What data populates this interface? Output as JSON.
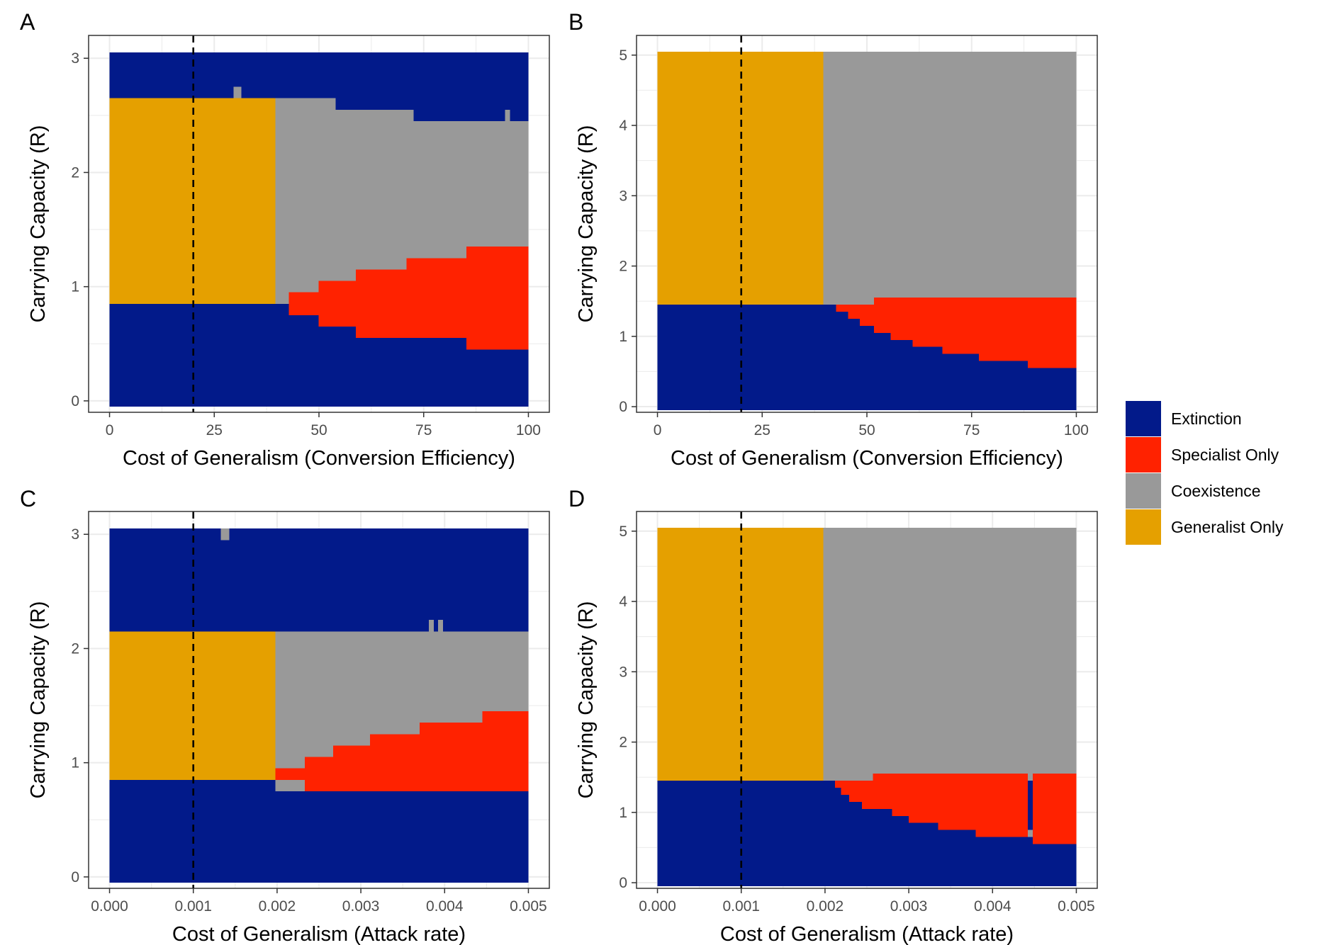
{
  "colors": {
    "Extinction": "#021A8A",
    "Specialist Only": "#FF2200",
    "Coexistence": "#999999",
    "Generalist Only": "#E5A000",
    "grid": "#EBEBEB",
    "border": "#333333",
    "ticks": "#4D4D4D"
  },
  "legend": {
    "items": [
      "Extinction",
      "Specialist Only",
      "Coexistence",
      "Generalist Only"
    ]
  },
  "chart_data": [
    {
      "panel": "A",
      "type": "heatmap",
      "xlabel": "Cost of Generalism (Conversion Efficiency)",
      "ylabel": "Carrying Capacity (R)",
      "xlim": [
        -5,
        105
      ],
      "ylim": [
        -0.1,
        3.2
      ],
      "xticks": [
        0,
        25,
        50,
        75,
        100
      ],
      "yticks": [
        0,
        1,
        2,
        3
      ],
      "xtick_labels": [
        "0",
        "25",
        "50",
        "75",
        "100"
      ],
      "ytick_labels": [
        "0",
        "1",
        "2",
        "3"
      ],
      "grid": true,
      "reference_line_x": 20,
      "regions": [
        {
          "state": "Extinction",
          "x0": 0,
          "x1": 100,
          "y0": -0.05,
          "y1": 3.05
        },
        {
          "state": "Generalist Only",
          "x0": 0,
          "x1": 39.6,
          "y0": 0.85,
          "y1": 2.65
        },
        {
          "state": "Coexistence",
          "x0": 39.6,
          "x1": 54,
          "y0": 0.85,
          "y1": 2.65
        },
        {
          "state": "Coexistence",
          "x0": 54,
          "x1": 72.6,
          "y0": 0.85,
          "y1": 2.55
        },
        {
          "state": "Coexistence",
          "x0": 72.6,
          "x1": 100,
          "y0": 0.85,
          "y1": 2.45
        },
        {
          "state": "Coexistence",
          "x0": 29.6,
          "x1": 31.5,
          "y0": 2.65,
          "y1": 2.75
        },
        {
          "state": "Coexistence",
          "x0": 94.4,
          "x1": 95.6,
          "y0": 2.45,
          "y1": 2.55
        },
        {
          "state": "Coexistence",
          "x0": 39.6,
          "x1": 100,
          "y0": 0.85,
          "y1": 1.35
        },
        {
          "state": "Specialist Only",
          "x0": 42.8,
          "x1": 49.9,
          "y0": 0.75,
          "y1": 0.95
        },
        {
          "state": "Specialist Only",
          "x0": 49.9,
          "x1": 58.8,
          "y0": 0.65,
          "y1": 1.05
        },
        {
          "state": "Specialist Only",
          "x0": 58.8,
          "x1": 70.9,
          "y0": 0.55,
          "y1": 1.15
        },
        {
          "state": "Specialist Only",
          "x0": 70.9,
          "x1": 85.2,
          "y0": 0.55,
          "y1": 1.25
        },
        {
          "state": "Specialist Only",
          "x0": 85.2,
          "x1": 100,
          "y0": 0.45,
          "y1": 1.35
        }
      ]
    },
    {
      "panel": "B",
      "type": "heatmap",
      "xlabel": "Cost of Generalism (Conversion Efficiency)",
      "ylabel": "Carrying Capacity (R)",
      "xlim": [
        -5,
        105
      ],
      "ylim": [
        -0.08,
        5.28
      ],
      "xticks": [
        0,
        25,
        50,
        75,
        100
      ],
      "yticks": [
        0,
        1,
        2,
        3,
        4,
        5
      ],
      "xtick_labels": [
        "0",
        "25",
        "50",
        "75",
        "100"
      ],
      "ytick_labels": [
        "0",
        "1",
        "2",
        "3",
        "4",
        "5"
      ],
      "grid": true,
      "reference_line_x": 20,
      "regions": [
        {
          "state": "Extinction",
          "x0": 0,
          "x1": 100,
          "y0": -0.05,
          "y1": 1.45
        },
        {
          "state": "Generalist Only",
          "x0": 0,
          "x1": 39.6,
          "y0": 1.45,
          "y1": 5.05
        },
        {
          "state": "Coexistence",
          "x0": 39.6,
          "x1": 100,
          "y0": 1.45,
          "y1": 5.05
        },
        {
          "state": "Coexistence",
          "x0": 51.7,
          "x1": 100,
          "y0": 1.45,
          "y1": 1.55
        },
        {
          "state": "Specialist Only",
          "x0": 42.6,
          "x1": 45.5,
          "y0": 1.35,
          "y1": 1.45
        },
        {
          "state": "Specialist Only",
          "x0": 45.5,
          "x1": 48.3,
          "y0": 1.25,
          "y1": 1.45
        },
        {
          "state": "Specialist Only",
          "x0": 48.3,
          "x1": 51.7,
          "y0": 1.15,
          "y1": 1.45
        },
        {
          "state": "Specialist Only",
          "x0": 51.7,
          "x1": 55.7,
          "y0": 1.05,
          "y1": 1.55
        },
        {
          "state": "Specialist Only",
          "x0": 55.7,
          "x1": 60.9,
          "y0": 0.95,
          "y1": 1.55
        },
        {
          "state": "Specialist Only",
          "x0": 60.9,
          "x1": 68.0,
          "y0": 0.85,
          "y1": 1.55
        },
        {
          "state": "Specialist Only",
          "x0": 68.0,
          "x1": 76.7,
          "y0": 0.75,
          "y1": 1.55
        },
        {
          "state": "Specialist Only",
          "x0": 76.7,
          "x1": 88.4,
          "y0": 0.65,
          "y1": 1.55
        },
        {
          "state": "Specialist Only",
          "x0": 88.4,
          "x1": 100,
          "y0": 0.55,
          "y1": 1.55
        }
      ]
    },
    {
      "panel": "C",
      "type": "heatmap",
      "xlabel": "Cost of Generalism (Attack rate)",
      "ylabel": "Carrying Capacity (R)",
      "xlim": [
        -0.00025,
        0.00525
      ],
      "ylim": [
        -0.1,
        3.2
      ],
      "xticks": [
        0,
        0.001,
        0.002,
        0.003,
        0.004,
        0.005
      ],
      "yticks": [
        0,
        1,
        2,
        3
      ],
      "xtick_labels": [
        "0.000",
        "0.001",
        "0.002",
        "0.003",
        "0.004",
        "0.005"
      ],
      "ytick_labels": [
        "0",
        "1",
        "2",
        "3"
      ],
      "grid": true,
      "reference_line_x": 0.001,
      "regions": [
        {
          "state": "Extinction",
          "x0": 0,
          "x1": 0.005,
          "y0": -0.05,
          "y1": 3.05
        },
        {
          "state": "Generalist Only",
          "x0": 0,
          "x1": 0.00198,
          "y0": 0.85,
          "y1": 2.15
        },
        {
          "state": "Coexistence",
          "x0": 0.00198,
          "x1": 0.005,
          "y0": 0.85,
          "y1": 2.15
        },
        {
          "state": "Coexistence",
          "x0": 0.00133,
          "x1": 0.00143,
          "y0": 2.95,
          "y1": 3.05
        },
        {
          "state": "Coexistence",
          "x0": 0.00381,
          "x1": 0.00387,
          "y0": 2.15,
          "y1": 2.25
        },
        {
          "state": "Coexistence",
          "x0": 0.00392,
          "x1": 0.00398,
          "y0": 2.15,
          "y1": 2.25
        },
        {
          "state": "Coexistence",
          "x0": 0.00198,
          "x1": 0.005,
          "y0": 0.75,
          "y1": 0.85
        },
        {
          "state": "Specialist Only",
          "x0": 0.00198,
          "x1": 0.00233,
          "y0": 0.85,
          "y1": 0.95
        },
        {
          "state": "Specialist Only",
          "x0": 0.00233,
          "x1": 0.00267,
          "y0": 0.75,
          "y1": 1.05
        },
        {
          "state": "Specialist Only",
          "x0": 0.00267,
          "x1": 0.00311,
          "y0": 0.75,
          "y1": 1.15
        },
        {
          "state": "Specialist Only",
          "x0": 0.00311,
          "x1": 0.00365,
          "y0": 0.75,
          "y1": 1.25
        },
        {
          "state": "Specialist Only",
          "x0": 0.00365,
          "x1": 0.0037,
          "y0": 0.75,
          "y1": 1.25
        },
        {
          "state": "Specialist Only",
          "x0": 0.0037,
          "x1": 0.00445,
          "y0": 0.75,
          "y1": 1.35
        },
        {
          "state": "Specialist Only",
          "x0": 0.00445,
          "x1": 0.005,
          "y0": 0.75,
          "y1": 1.45
        }
      ]
    },
    {
      "panel": "D",
      "type": "heatmap",
      "xlabel": "Cost of Generalism (Attack rate)",
      "ylabel": "Carrying Capacity (R)",
      "xlim": [
        -0.00025,
        0.00525
      ],
      "ylim": [
        -0.08,
        5.28
      ],
      "xticks": [
        0,
        0.001,
        0.002,
        0.003,
        0.004,
        0.005
      ],
      "yticks": [
        0,
        1,
        2,
        3,
        4,
        5
      ],
      "xtick_labels": [
        "0.000",
        "0.001",
        "0.002",
        "0.003",
        "0.004",
        "0.005"
      ],
      "ytick_labels": [
        "0",
        "1",
        "2",
        "3",
        "4",
        "5"
      ],
      "grid": true,
      "reference_line_x": 0.001,
      "regions": [
        {
          "state": "Extinction",
          "x0": 0,
          "x1": 0.005,
          "y0": -0.05,
          "y1": 1.45
        },
        {
          "state": "Generalist Only",
          "x0": 0,
          "x1": 0.00198,
          "y0": 1.45,
          "y1": 5.05
        },
        {
          "state": "Coexistence",
          "x0": 0.00198,
          "x1": 0.005,
          "y0": 1.45,
          "y1": 5.05
        },
        {
          "state": "Coexistence",
          "x0": 0.00257,
          "x1": 0.005,
          "y0": 1.45,
          "y1": 1.55
        },
        {
          "state": "Coexistence",
          "x0": 0.00442,
          "x1": 0.00448,
          "y0": 0.65,
          "y1": 0.75
        },
        {
          "state": "Specialist Only",
          "x0": 0.00212,
          "x1": 0.00219,
          "y0": 1.35,
          "y1": 1.45
        },
        {
          "state": "Specialist Only",
          "x0": 0.00219,
          "x1": 0.00229,
          "y0": 1.25,
          "y1": 1.45
        },
        {
          "state": "Specialist Only",
          "x0": 0.00229,
          "x1": 0.00244,
          "y0": 1.15,
          "y1": 1.45
        },
        {
          "state": "Specialist Only",
          "x0": 0.00244,
          "x1": 0.00257,
          "y0": 1.05,
          "y1": 1.45
        },
        {
          "state": "Specialist Only",
          "x0": 0.00257,
          "x1": 0.0028,
          "y0": 1.05,
          "y1": 1.55
        },
        {
          "state": "Specialist Only",
          "x0": 0.0028,
          "x1": 0.003,
          "y0": 0.95,
          "y1": 1.55
        },
        {
          "state": "Specialist Only",
          "x0": 0.003,
          "x1": 0.00335,
          "y0": 0.85,
          "y1": 1.55
        },
        {
          "state": "Specialist Only",
          "x0": 0.00335,
          "x1": 0.0038,
          "y0": 0.75,
          "y1": 1.55
        },
        {
          "state": "Specialist Only",
          "x0": 0.0038,
          "x1": 0.00442,
          "y0": 0.65,
          "y1": 1.55
        },
        {
          "state": "Specialist Only",
          "x0": 0.00448,
          "x1": 0.005,
          "y0": 0.55,
          "y1": 1.55
        }
      ]
    }
  ]
}
